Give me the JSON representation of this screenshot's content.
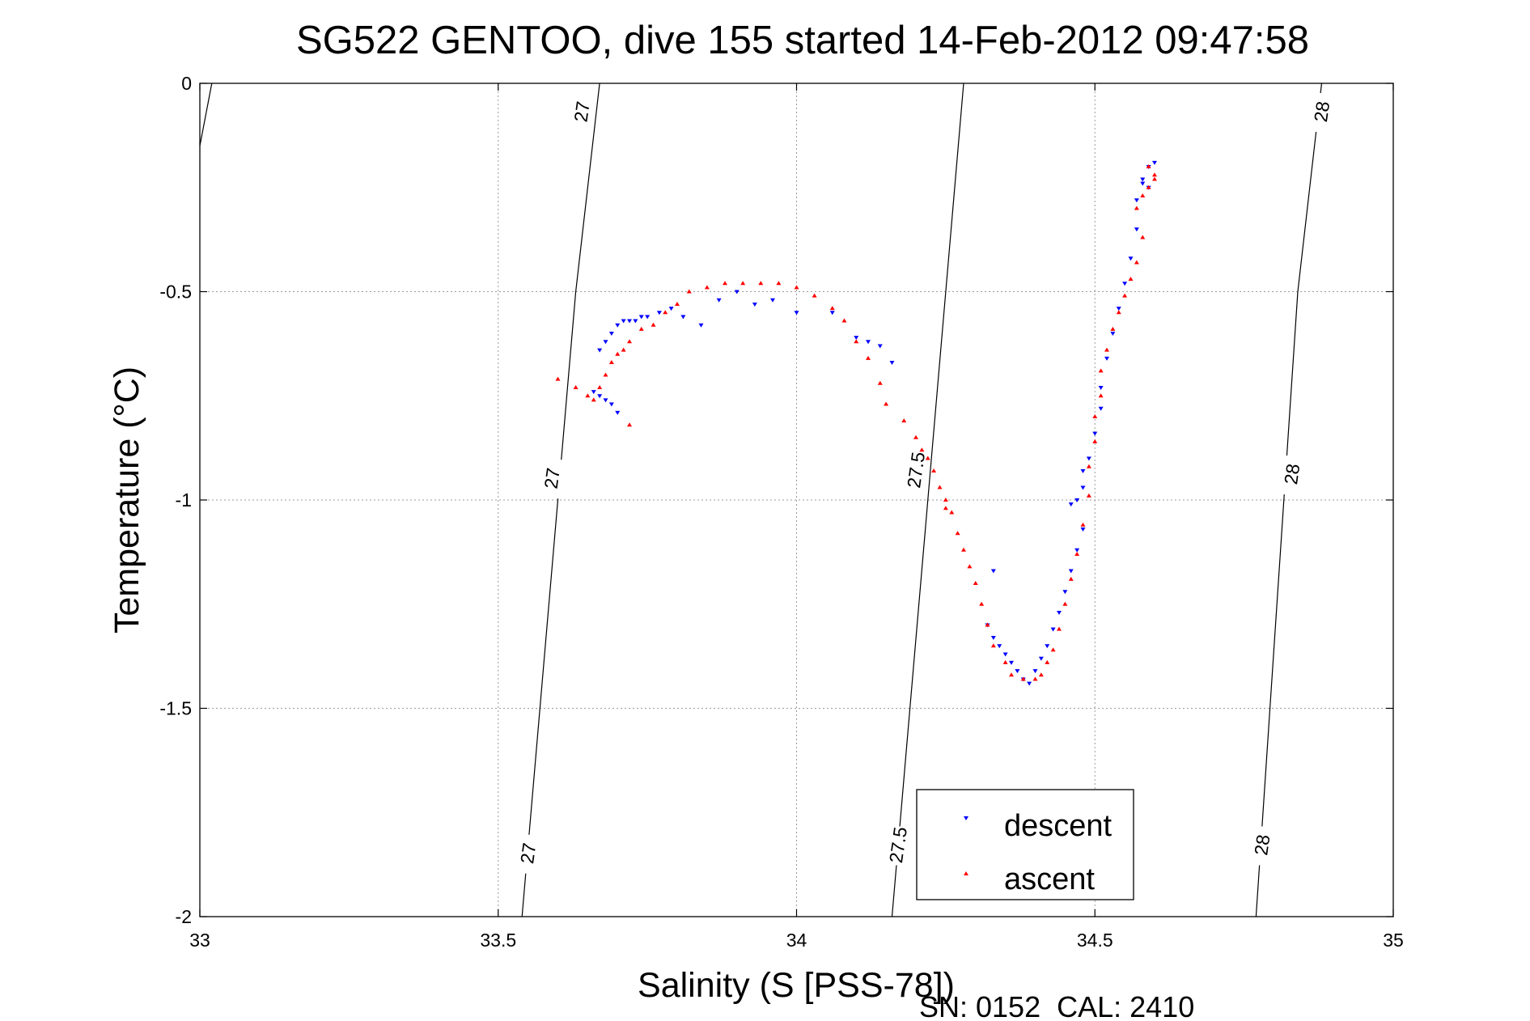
{
  "chart_data": {
    "type": "scatter",
    "title": "SG522 GENTOO, dive 155 started 14-Feb-2012 09:47:58",
    "xlabel": "Salinity (S [PSS-78])",
    "ylabel": "Temperature (°C)",
    "footnote": "SN: 0152  CAL: 2410",
    "xlim": [
      33,
      35
    ],
    "ylim": [
      -2,
      0
    ],
    "xticks": [
      {
        "value": 33,
        "label": "33"
      },
      {
        "value": 33.5,
        "label": "33.5"
      },
      {
        "value": 34,
        "label": "34"
      },
      {
        "value": 34.5,
        "label": "34.5"
      },
      {
        "value": 35,
        "label": "35"
      }
    ],
    "yticks": [
      {
        "value": 0,
        "label": "0"
      },
      {
        "value": -0.5,
        "label": "-0.5"
      },
      {
        "value": -1,
        "label": "-1"
      },
      {
        "value": -1.5,
        "label": "-1.5"
      },
      {
        "value": -2,
        "label": "-2"
      }
    ],
    "grid": true,
    "legend_position": "bottom-right",
    "contours": [
      {
        "name": "27",
        "points": [
          [
            33.54,
            -2
          ],
          [
            33.63,
            -0.5
          ],
          [
            33.67,
            0
          ]
        ],
        "labels": [
          {
            "text": "27",
            "at": [
              33.55,
              -1.85
            ]
          },
          {
            "text": "27",
            "at": [
              33.59,
              -0.95
            ]
          },
          {
            "text": "27",
            "at": [
              33.64,
              -0.07
            ]
          }
        ]
      },
      {
        "name": "27.5",
        "points": [
          [
            34.16,
            -2
          ],
          [
            34.25,
            -0.5
          ],
          [
            34.28,
            0
          ]
        ],
        "labels": [
          {
            "text": "27.5",
            "at": [
              34.17,
              -1.83
            ]
          },
          {
            "text": "27.5",
            "at": [
              34.2,
              -0.93
            ]
          }
        ]
      },
      {
        "name": "28",
        "points": [
          [
            34.77,
            -2
          ],
          [
            34.84,
            -0.5
          ],
          [
            34.88,
            0
          ]
        ],
        "labels": [
          {
            "text": "28",
            "at": [
              34.78,
              -1.83
            ]
          },
          {
            "text": "28",
            "at": [
              34.83,
              -0.94
            ]
          },
          {
            "text": "28",
            "at": [
              34.88,
              -0.07
            ]
          }
        ]
      },
      {
        "name": "",
        "points": [
          [
            33.0,
            -0.15
          ],
          [
            33.02,
            0
          ]
        ],
        "labels": []
      }
    ],
    "series": [
      {
        "name": "descent",
        "color": "#0000ff",
        "marker": "triangle-down",
        "points": [
          [
            33.66,
            -0.74
          ],
          [
            33.67,
            -0.75
          ],
          [
            33.68,
            -0.76
          ],
          [
            33.69,
            -0.77
          ],
          [
            33.7,
            -0.79
          ],
          [
            33.67,
            -0.64
          ],
          [
            33.68,
            -0.62
          ],
          [
            33.69,
            -0.6
          ],
          [
            33.7,
            -0.58
          ],
          [
            33.71,
            -0.57
          ],
          [
            33.72,
            -0.57
          ],
          [
            33.73,
            -0.57
          ],
          [
            33.74,
            -0.56
          ],
          [
            33.75,
            -0.56
          ],
          [
            33.77,
            -0.55
          ],
          [
            33.79,
            -0.54
          ],
          [
            33.81,
            -0.56
          ],
          [
            33.84,
            -0.58
          ],
          [
            33.87,
            -0.52
          ],
          [
            33.9,
            -0.5
          ],
          [
            33.93,
            -0.53
          ],
          [
            33.96,
            -0.52
          ],
          [
            34.0,
            -0.55
          ],
          [
            34.06,
            -0.55
          ],
          [
            34.1,
            -0.61
          ],
          [
            34.12,
            -0.62
          ],
          [
            34.14,
            -0.63
          ],
          [
            34.16,
            -0.67
          ],
          [
            34.33,
            -1.17
          ],
          [
            34.32,
            -1.3
          ],
          [
            34.33,
            -1.33
          ],
          [
            34.34,
            -1.35
          ],
          [
            34.35,
            -1.37
          ],
          [
            34.36,
            -1.39
          ],
          [
            34.37,
            -1.41
          ],
          [
            34.38,
            -1.43
          ],
          [
            34.39,
            -1.44
          ],
          [
            34.4,
            -1.41
          ],
          [
            34.41,
            -1.38
          ],
          [
            34.42,
            -1.35
          ],
          [
            34.43,
            -1.31
          ],
          [
            34.44,
            -1.27
          ],
          [
            34.45,
            -1.22
          ],
          [
            34.46,
            -1.17
          ],
          [
            34.47,
            -1.12
          ],
          [
            34.48,
            -1.07
          ],
          [
            34.46,
            -1.01
          ],
          [
            34.47,
            -1.0
          ],
          [
            34.48,
            -0.97
          ],
          [
            34.48,
            -0.93
          ],
          [
            34.49,
            -0.9
          ],
          [
            34.5,
            -0.84
          ],
          [
            34.51,
            -0.78
          ],
          [
            34.51,
            -0.73
          ],
          [
            34.52,
            -0.66
          ],
          [
            34.53,
            -0.6
          ],
          [
            34.54,
            -0.54
          ],
          [
            34.55,
            -0.48
          ],
          [
            34.56,
            -0.42
          ],
          [
            34.57,
            -0.35
          ],
          [
            34.57,
            -0.28
          ],
          [
            34.58,
            -0.23
          ],
          [
            34.59,
            -0.2
          ],
          [
            34.6,
            -0.19
          ],
          [
            34.59,
            -0.25
          ],
          [
            34.58,
            -0.24
          ]
        ]
      },
      {
        "name": "ascent",
        "color": "#ff0000",
        "marker": "triangle-up",
        "points": [
          [
            33.6,
            -0.71
          ],
          [
            33.63,
            -0.73
          ],
          [
            33.65,
            -0.75
          ],
          [
            33.66,
            -0.76
          ],
          [
            33.67,
            -0.73
          ],
          [
            33.68,
            -0.7
          ],
          [
            33.69,
            -0.67
          ],
          [
            33.7,
            -0.65
          ],
          [
            33.71,
            -0.64
          ],
          [
            33.72,
            -0.82
          ],
          [
            33.72,
            -0.62
          ],
          [
            33.74,
            -0.59
          ],
          [
            33.76,
            -0.58
          ],
          [
            33.78,
            -0.55
          ],
          [
            33.8,
            -0.53
          ],
          [
            33.82,
            -0.5
          ],
          [
            33.85,
            -0.49
          ],
          [
            33.88,
            -0.48
          ],
          [
            33.91,
            -0.48
          ],
          [
            33.94,
            -0.48
          ],
          [
            33.97,
            -0.48
          ],
          [
            34.0,
            -0.49
          ],
          [
            34.03,
            -0.51
          ],
          [
            34.06,
            -0.54
          ],
          [
            34.08,
            -0.57
          ],
          [
            34.1,
            -0.62
          ],
          [
            34.12,
            -0.66
          ],
          [
            34.14,
            -0.72
          ],
          [
            34.15,
            -0.77
          ],
          [
            34.18,
            -0.81
          ],
          [
            34.2,
            -0.85
          ],
          [
            34.21,
            -0.88
          ],
          [
            34.22,
            -0.9
          ],
          [
            34.23,
            -0.93
          ],
          [
            34.24,
            -0.97
          ],
          [
            34.25,
            -1.0
          ],
          [
            34.25,
            -1.02
          ],
          [
            34.26,
            -1.03
          ],
          [
            34.27,
            -1.08
          ],
          [
            34.28,
            -1.12
          ],
          [
            34.29,
            -1.16
          ],
          [
            34.3,
            -1.2
          ],
          [
            34.31,
            -1.25
          ],
          [
            34.32,
            -1.3
          ],
          [
            34.33,
            -1.35
          ],
          [
            34.35,
            -1.39
          ],
          [
            34.36,
            -1.42
          ],
          [
            34.38,
            -1.43
          ],
          [
            34.4,
            -1.43
          ],
          [
            34.41,
            -1.42
          ],
          [
            34.42,
            -1.39
          ],
          [
            34.43,
            -1.36
          ],
          [
            34.44,
            -1.31
          ],
          [
            34.45,
            -1.25
          ],
          [
            34.46,
            -1.19
          ],
          [
            34.47,
            -1.13
          ],
          [
            34.48,
            -1.06
          ],
          [
            34.49,
            -0.99
          ],
          [
            34.49,
            -0.92
          ],
          [
            34.5,
            -0.86
          ],
          [
            34.5,
            -0.8
          ],
          [
            34.51,
            -0.75
          ],
          [
            34.51,
            -0.69
          ],
          [
            34.52,
            -0.64
          ],
          [
            34.53,
            -0.59
          ],
          [
            34.54,
            -0.55
          ],
          [
            34.55,
            -0.51
          ],
          [
            34.56,
            -0.47
          ],
          [
            34.57,
            -0.43
          ],
          [
            34.58,
            -0.37
          ],
          [
            34.57,
            -0.3
          ],
          [
            34.58,
            -0.27
          ],
          [
            34.59,
            -0.25
          ],
          [
            34.6,
            -0.23
          ],
          [
            34.59,
            -0.2
          ],
          [
            34.6,
            -0.22
          ]
        ]
      }
    ]
  }
}
